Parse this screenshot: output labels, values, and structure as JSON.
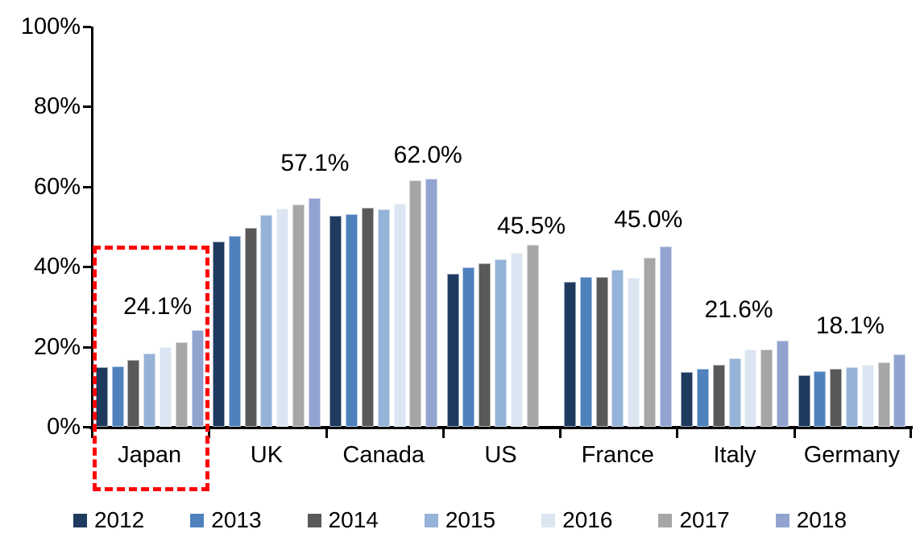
{
  "chart_data": {
    "type": "bar",
    "title": "",
    "xlabel": "",
    "ylabel": "",
    "ylim": [
      0,
      100
    ],
    "y_ticks": [
      "100%",
      "80%",
      "60%",
      "40%",
      "20%",
      "0%"
    ],
    "grid": "off",
    "legend_position": "bottom",
    "categories": [
      "Japan",
      "UK",
      "Canada",
      "US",
      "France",
      "Italy",
      "Germany"
    ],
    "series": [
      {
        "name": "2012",
        "color": "#1E3A5F",
        "values": [
          14.8,
          46.2,
          52.7,
          38.2,
          36.3,
          13.6,
          12.8
        ]
      },
      {
        "name": "2013",
        "color": "#4F81BD",
        "values": [
          15.0,
          47.6,
          53.2,
          39.9,
          37.4,
          14.4,
          13.9
        ]
      },
      {
        "name": "2014",
        "color": "#595959",
        "values": [
          16.7,
          49.6,
          54.7,
          40.8,
          37.5,
          15.5,
          14.4
        ]
      },
      {
        "name": "2015",
        "color": "#95B3D7",
        "values": [
          18.3,
          53.0,
          54.4,
          41.8,
          39.2,
          17.2,
          14.8
        ]
      },
      {
        "name": "2016",
        "color": "#DCE6F2",
        "values": [
          20.0,
          54.6,
          55.8,
          43.4,
          37.3,
          19.3,
          15.5
        ]
      },
      {
        "name": "2017",
        "color": "#A6A6A6",
        "values": [
          21.2,
          55.5,
          61.5,
          45.5,
          42.3,
          19.4,
          16.0
        ]
      },
      {
        "name": "2018",
        "color": "#92A3CF",
        "values": [
          24.1,
          57.1,
          62.0,
          null,
          45.0,
          21.6,
          18.1
        ]
      }
    ],
    "annotations": [
      {
        "category": "Japan",
        "label": "24.1%"
      },
      {
        "category": "UK",
        "label": "57.1%"
      },
      {
        "category": "Canada",
        "label": "62.0%"
      },
      {
        "category": "US",
        "label": "45.5%"
      },
      {
        "category": "France",
        "label": "45.0%"
      },
      {
        "category": "Italy",
        "label": "21.6%"
      },
      {
        "category": "Germany",
        "label": "18.1%"
      }
    ],
    "highlight": {
      "category": "Japan",
      "style": "red-dashed-box",
      "color": "#FF0000"
    }
  }
}
